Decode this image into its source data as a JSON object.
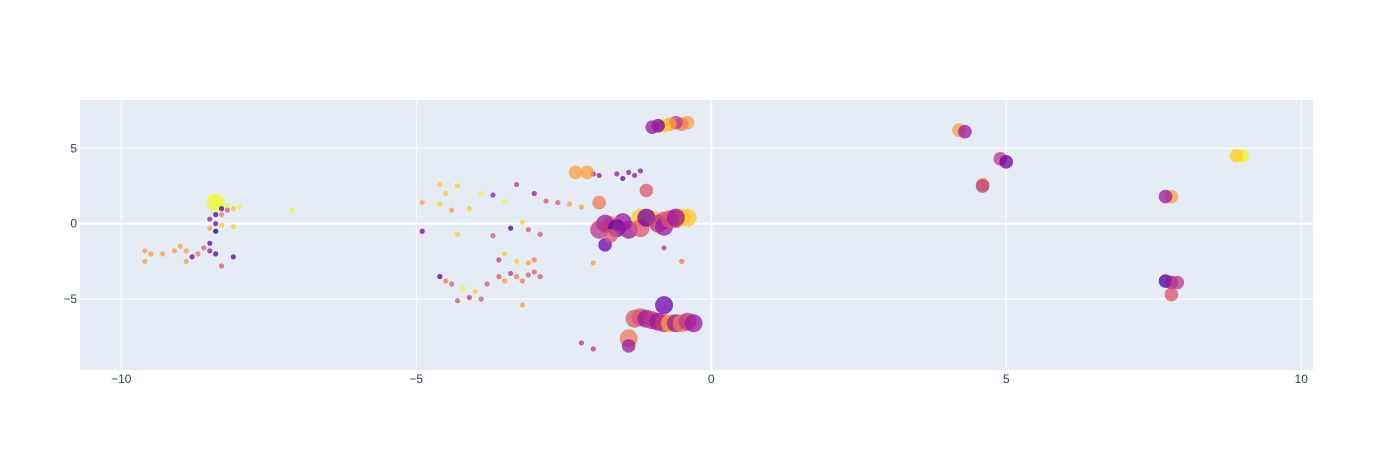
{
  "chart_data": {
    "type": "scatter",
    "title": "",
    "xlabel": "",
    "ylabel": "",
    "xlim": [
      -10.7,
      10.2
    ],
    "ylim": [
      -9.7,
      8.2
    ],
    "grid": true,
    "legend": "none",
    "plot_background": "#e5ecf6",
    "grid_color": "#ffffff",
    "xticks": [
      -10,
      -5,
      0,
      5,
      10
    ],
    "yticks": [
      -5,
      0,
      5
    ],
    "x_tick_labels": [
      "−10",
      "−5",
      "0",
      "5",
      "10"
    ],
    "y_tick_labels": [
      "−5",
      "0",
      "5"
    ],
    "colorscale": [
      "#0d0887",
      "#46039f",
      "#7201a8",
      "#9c179e",
      "#bd3786",
      "#d8576b",
      "#ed7953",
      "#fb9f3a",
      "#fdca26",
      "#f0f921"
    ],
    "points": [
      {
        "x": -8.4,
        "y": 1.4,
        "s": "l",
        "c": 0.97
      },
      {
        "x": -8.2,
        "y": 1.2,
        "s": "s",
        "c": 0.95
      },
      {
        "x": -8.1,
        "y": 1.0,
        "s": "s",
        "c": 0.9
      },
      {
        "x": -8.0,
        "y": 1.1,
        "s": "s",
        "c": 0.95
      },
      {
        "x": -8.3,
        "y": 1.0,
        "s": "s",
        "c": 0.1
      },
      {
        "x": -8.2,
        "y": 0.9,
        "s": "s",
        "c": 0.5
      },
      {
        "x": -8.4,
        "y": 0.6,
        "s": "s",
        "c": 0.15
      },
      {
        "x": -8.3,
        "y": 0.6,
        "s": "s",
        "c": 0.65
      },
      {
        "x": -8.5,
        "y": 0.3,
        "s": "s",
        "c": 0.35
      },
      {
        "x": -8.4,
        "y": 0.0,
        "s": "s",
        "c": 0.2
      },
      {
        "x": -8.3,
        "y": -0.1,
        "s": "s",
        "c": 0.9
      },
      {
        "x": -8.1,
        "y": -0.2,
        "s": "s",
        "c": 0.9
      },
      {
        "x": -8.5,
        "y": -0.3,
        "s": "s",
        "c": 0.8
      },
      {
        "x": -8.4,
        "y": -0.5,
        "s": "s",
        "c": 0.05
      },
      {
        "x": -8.5,
        "y": -1.3,
        "s": "s",
        "c": 0.25
      },
      {
        "x": -8.6,
        "y": -1.6,
        "s": "s",
        "c": 0.5
      },
      {
        "x": -8.5,
        "y": -1.8,
        "s": "s",
        "c": 0.3
      },
      {
        "x": -8.4,
        "y": -2.0,
        "s": "s",
        "c": 0.15
      },
      {
        "x": -8.7,
        "y": -2.0,
        "s": "s",
        "c": 0.7
      },
      {
        "x": -8.8,
        "y": -2.2,
        "s": "s",
        "c": 0.25
      },
      {
        "x": -8.9,
        "y": -1.8,
        "s": "s",
        "c": 0.75
      },
      {
        "x": -9.0,
        "y": -1.5,
        "s": "s",
        "c": 0.78
      },
      {
        "x": -9.1,
        "y": -1.8,
        "s": "s",
        "c": 0.75
      },
      {
        "x": -9.3,
        "y": -2.0,
        "s": "s",
        "c": 0.78
      },
      {
        "x": -9.5,
        "y": -2.0,
        "s": "s",
        "c": 0.78
      },
      {
        "x": -9.6,
        "y": -1.8,
        "s": "s",
        "c": 0.78
      },
      {
        "x": -9.6,
        "y": -2.5,
        "s": "s",
        "c": 0.78
      },
      {
        "x": -8.9,
        "y": -2.5,
        "s": "s",
        "c": 0.78
      },
      {
        "x": -8.3,
        "y": -2.8,
        "s": "s",
        "c": 0.55
      },
      {
        "x": -8.1,
        "y": -2.2,
        "s": "s",
        "c": 0.2
      },
      {
        "x": -7.1,
        "y": 0.9,
        "s": "s",
        "c": 0.97
      },
      {
        "x": -4.9,
        "y": 1.4,
        "s": "s",
        "c": 0.82
      },
      {
        "x": -4.6,
        "y": 2.6,
        "s": "s",
        "c": 0.85
      },
      {
        "x": -4.5,
        "y": 2.0,
        "s": "s",
        "c": 0.85
      },
      {
        "x": -4.6,
        "y": 1.3,
        "s": "s",
        "c": 0.85
      },
      {
        "x": -4.4,
        "y": 0.9,
        "s": "s",
        "c": 0.82
      },
      {
        "x": -4.3,
        "y": 2.5,
        "s": "s",
        "c": 0.85
      },
      {
        "x": -4.1,
        "y": 1.0,
        "s": "s",
        "c": 0.85
      },
      {
        "x": -3.9,
        "y": 2.0,
        "s": "s",
        "c": 0.95
      },
      {
        "x": -3.7,
        "y": 1.9,
        "s": "s",
        "c": 0.35
      },
      {
        "x": -3.5,
        "y": 1.5,
        "s": "s",
        "c": 0.95
      },
      {
        "x": -3.3,
        "y": 2.6,
        "s": "s",
        "c": 0.4
      },
      {
        "x": -3.0,
        "y": 2.0,
        "s": "s",
        "c": 0.3
      },
      {
        "x": -2.8,
        "y": 1.5,
        "s": "s",
        "c": 0.5
      },
      {
        "x": -2.6,
        "y": 1.4,
        "s": "s",
        "c": 0.55
      },
      {
        "x": -2.4,
        "y": 1.3,
        "s": "s",
        "c": 0.75
      },
      {
        "x": -2.2,
        "y": 1.1,
        "s": "s",
        "c": 0.8
      },
      {
        "x": -4.9,
        "y": -0.5,
        "s": "s",
        "c": 0.25
      },
      {
        "x": -4.3,
        "y": -0.7,
        "s": "s",
        "c": 0.85
      },
      {
        "x": -3.7,
        "y": -0.8,
        "s": "s",
        "c": 0.5
      },
      {
        "x": -3.4,
        "y": -0.3,
        "s": "s",
        "c": 0.15
      },
      {
        "x": -3.2,
        "y": 0.1,
        "s": "s",
        "c": 0.85
      },
      {
        "x": -3.1,
        "y": -0.4,
        "s": "s",
        "c": 0.6
      },
      {
        "x": -2.9,
        "y": -0.7,
        "s": "s",
        "c": 0.5
      },
      {
        "x": -3.6,
        "y": -2.4,
        "s": "s",
        "c": 0.45
      },
      {
        "x": -3.5,
        "y": -2.0,
        "s": "s",
        "c": 0.85
      },
      {
        "x": -3.3,
        "y": -2.5,
        "s": "s",
        "c": 0.9
      },
      {
        "x": -3.1,
        "y": -2.6,
        "s": "s",
        "c": 0.8
      },
      {
        "x": -3.0,
        "y": -2.4,
        "s": "s",
        "c": 0.7
      },
      {
        "x": -4.6,
        "y": -3.5,
        "s": "s",
        "c": 0.15
      },
      {
        "x": -4.5,
        "y": -3.8,
        "s": "s",
        "c": 0.65
      },
      {
        "x": -4.4,
        "y": -4.0,
        "s": "s",
        "c": 0.6
      },
      {
        "x": -4.2,
        "y": -4.3,
        "s": "s",
        "c": 0.95
      },
      {
        "x": -4.0,
        "y": -4.5,
        "s": "s",
        "c": 0.85
      },
      {
        "x": -3.8,
        "y": -4.0,
        "s": "s",
        "c": 0.6
      },
      {
        "x": -3.6,
        "y": -3.5,
        "s": "s",
        "c": 0.5
      },
      {
        "x": -3.5,
        "y": -3.8,
        "s": "s",
        "c": 0.75
      },
      {
        "x": -3.4,
        "y": -3.3,
        "s": "s",
        "c": 0.4
      },
      {
        "x": -3.3,
        "y": -3.5,
        "s": "s",
        "c": 0.65
      },
      {
        "x": -3.2,
        "y": -3.8,
        "s": "s",
        "c": 0.7
      },
      {
        "x": -3.1,
        "y": -3.4,
        "s": "s",
        "c": 0.55
      },
      {
        "x": -3.0,
        "y": -3.2,
        "s": "s",
        "c": 0.6
      },
      {
        "x": -2.9,
        "y": -3.5,
        "s": "s",
        "c": 0.6
      },
      {
        "x": -4.3,
        "y": -5.1,
        "s": "s",
        "c": 0.55
      },
      {
        "x": -4.1,
        "y": -4.9,
        "s": "s",
        "c": 0.45
      },
      {
        "x": -3.9,
        "y": -5.0,
        "s": "s",
        "c": 0.6
      },
      {
        "x": -3.2,
        "y": -5.4,
        "s": "s",
        "c": 0.75
      },
      {
        "x": -2.0,
        "y": 3.3,
        "s": "s",
        "c": 0.35
      },
      {
        "x": -1.9,
        "y": 3.2,
        "s": "s",
        "c": 0.35
      },
      {
        "x": -1.6,
        "y": 3.3,
        "s": "s",
        "c": 0.35
      },
      {
        "x": -1.5,
        "y": 3.0,
        "s": "s",
        "c": 0.2
      },
      {
        "x": -1.4,
        "y": 3.4,
        "s": "s",
        "c": 0.35
      },
      {
        "x": -1.3,
        "y": 3.2,
        "s": "s",
        "c": 0.35
      },
      {
        "x": -1.2,
        "y": 3.5,
        "s": "s",
        "c": 0.35
      },
      {
        "x": -2.3,
        "y": 3.4,
        "s": "m",
        "c": 0.75
      },
      {
        "x": -2.1,
        "y": 3.4,
        "s": "m",
        "c": 0.78
      },
      {
        "x": -1.9,
        "y": 1.4,
        "s": "m",
        "c": 0.7
      },
      {
        "x": -1.1,
        "y": 2.2,
        "s": "m",
        "c": 0.5
      },
      {
        "x": -2.0,
        "y": -2.6,
        "s": "s",
        "c": 0.78
      },
      {
        "x": -0.8,
        "y": -1.6,
        "s": "s",
        "c": 0.45
      },
      {
        "x": -0.5,
        "y": -2.5,
        "s": "s",
        "c": 0.7
      },
      {
        "x": -2.2,
        "y": -7.9,
        "s": "s",
        "c": 0.45
      },
      {
        "x": -2.0,
        "y": -8.3,
        "s": "s",
        "c": 0.45
      },
      {
        "x": -0.4,
        "y": 6.7,
        "s": "m",
        "c": 0.8
      },
      {
        "x": -0.5,
        "y": 6.6,
        "s": "m",
        "c": 0.7
      },
      {
        "x": -0.6,
        "y": 6.7,
        "s": "m",
        "c": 0.45
      },
      {
        "x": -0.7,
        "y": 6.6,
        "s": "m",
        "c": 0.75
      },
      {
        "x": -0.8,
        "y": 6.5,
        "s": "m",
        "c": 0.9
      },
      {
        "x": -0.9,
        "y": 6.5,
        "s": "m",
        "c": 0.2
      },
      {
        "x": -1.0,
        "y": 6.4,
        "s": "m",
        "c": 0.35
      },
      {
        "x": -1.2,
        "y": 0.4,
        "s": "l",
        "c": 0.9
      },
      {
        "x": -1.0,
        "y": 0.3,
        "s": "l",
        "c": 0.85
      },
      {
        "x": -0.8,
        "y": 0.2,
        "s": "l",
        "c": 0.5
      },
      {
        "x": -0.6,
        "y": 0.3,
        "s": "l",
        "c": 0.6
      },
      {
        "x": -0.5,
        "y": 0.4,
        "s": "l",
        "c": 0.9
      },
      {
        "x": -0.4,
        "y": 0.4,
        "s": "l",
        "c": 0.85
      },
      {
        "x": -1.5,
        "y": 0.1,
        "s": "l",
        "c": 0.3
      },
      {
        "x": -1.7,
        "y": -0.1,
        "s": "l",
        "c": 0.7
      },
      {
        "x": -1.8,
        "y": 0.0,
        "s": "l",
        "c": 0.35
      },
      {
        "x": -1.6,
        "y": -0.3,
        "s": "l",
        "c": 0.2
      },
      {
        "x": -1.4,
        "y": -0.4,
        "s": "l",
        "c": 0.3
      },
      {
        "x": -1.2,
        "y": -0.3,
        "s": "l",
        "c": 0.5
      },
      {
        "x": -1.1,
        "y": 0.4,
        "s": "l",
        "c": 0.25
      },
      {
        "x": -0.9,
        "y": 0.0,
        "s": "l",
        "c": 0.45
      },
      {
        "x": -0.8,
        "y": -0.2,
        "s": "l",
        "c": 0.35
      },
      {
        "x": -0.7,
        "y": 0.3,
        "s": "l",
        "c": 0.55
      },
      {
        "x": -0.6,
        "y": 0.4,
        "s": "l",
        "c": 0.3
      },
      {
        "x": -1.9,
        "y": -0.4,
        "s": "l",
        "c": 0.4
      },
      {
        "x": -1.8,
        "y": -1.4,
        "s": "m",
        "c": 0.25
      },
      {
        "x": -1.7,
        "y": -0.8,
        "s": "m",
        "c": 0.5
      },
      {
        "x": -1.3,
        "y": -6.3,
        "s": "l",
        "c": 0.6
      },
      {
        "x": -1.2,
        "y": -6.2,
        "s": "l",
        "c": 0.55
      },
      {
        "x": -1.1,
        "y": -6.3,
        "s": "l",
        "c": 0.35
      },
      {
        "x": -1.0,
        "y": -6.4,
        "s": "l",
        "c": 0.4
      },
      {
        "x": -0.9,
        "y": -6.5,
        "s": "l",
        "c": 0.3
      },
      {
        "x": -0.8,
        "y": -6.6,
        "s": "l",
        "c": 0.45
      },
      {
        "x": -0.7,
        "y": -6.6,
        "s": "l",
        "c": 0.75
      },
      {
        "x": -0.6,
        "y": -6.6,
        "s": "l",
        "c": 0.35
      },
      {
        "x": -0.5,
        "y": -6.6,
        "s": "l",
        "c": 0.65
      },
      {
        "x": -0.4,
        "y": -6.5,
        "s": "l",
        "c": 0.4
      },
      {
        "x": -0.3,
        "y": -6.6,
        "s": "l",
        "c": 0.35
      },
      {
        "x": -0.8,
        "y": -5.4,
        "s": "l",
        "c": 0.25
      },
      {
        "x": -1.4,
        "y": -7.6,
        "s": "l",
        "c": 0.65
      },
      {
        "x": -1.4,
        "y": -8.1,
        "s": "m",
        "c": 0.35
      },
      {
        "x": 4.2,
        "y": 6.2,
        "s": "m",
        "c": 0.78
      },
      {
        "x": 4.3,
        "y": 6.1,
        "s": "m",
        "c": 0.35
      },
      {
        "x": 4.6,
        "y": 2.6,
        "s": "m",
        "c": 0.75
      },
      {
        "x": 4.6,
        "y": 2.5,
        "s": "m",
        "c": 0.4
      },
      {
        "x": 4.9,
        "y": 4.3,
        "s": "m",
        "c": 0.4
      },
      {
        "x": 5.0,
        "y": 4.1,
        "s": "m",
        "c": 0.2
      },
      {
        "x": 7.8,
        "y": 1.8,
        "s": "m",
        "c": 0.75
      },
      {
        "x": 7.7,
        "y": 1.8,
        "s": "m",
        "c": 0.3
      },
      {
        "x": 7.7,
        "y": -3.8,
        "s": "m",
        "c": 0.15
      },
      {
        "x": 7.8,
        "y": -3.9,
        "s": "m",
        "c": 0.35
      },
      {
        "x": 7.9,
        "y": -3.9,
        "s": "m",
        "c": 0.4
      },
      {
        "x": 7.8,
        "y": -4.7,
        "s": "m",
        "c": 0.55
      },
      {
        "x": 9.0,
        "y": 4.5,
        "s": "m",
        "c": 0.97
      },
      {
        "x": 8.9,
        "y": 4.5,
        "s": "m",
        "c": 0.85
      }
    ]
  }
}
